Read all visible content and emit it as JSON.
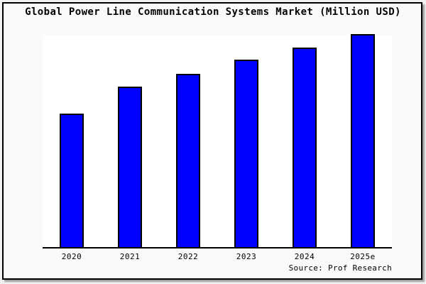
{
  "title": "Global Power Line Communication Systems Market (Million USD)",
  "source": "Source: Prof Research",
  "colors": {
    "bar_fill": "#0000ff",
    "bar_border": "#000000",
    "axis": "#000000",
    "plot_background": "#ffffff",
    "canvas_background": "#fafafa",
    "frame_border": "#000000",
    "text": "#000000"
  },
  "chart_data": {
    "type": "bar",
    "title": "Global Power Line Communication Systems Market (Million USD)",
    "categories": [
      "2020",
      "2021",
      "2022",
      "2023",
      "2024",
      "2025e"
    ],
    "values": [
      188,
      226,
      244,
      264,
      281,
      300
    ],
    "value_unit": "relative height (no y-axis ticks or data labels shown in chart)",
    "xlabel": "",
    "ylabel": "",
    "ylim": [
      0,
      301
    ],
    "grid": false,
    "legend": false,
    "annotations": [
      "Source: Prof Research"
    ]
  }
}
